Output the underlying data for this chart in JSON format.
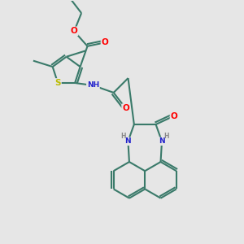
{
  "background_color": "#e6e6e6",
  "bond_color": "#3a7a6a",
  "bond_width": 1.5,
  "atom_colors": {
    "O": "#ff0000",
    "N": "#2222cc",
    "S": "#bbbb00",
    "C": "#3a7a6a",
    "H": "#888888"
  },
  "figsize": [
    3.0,
    3.0
  ],
  "dpi": 100
}
